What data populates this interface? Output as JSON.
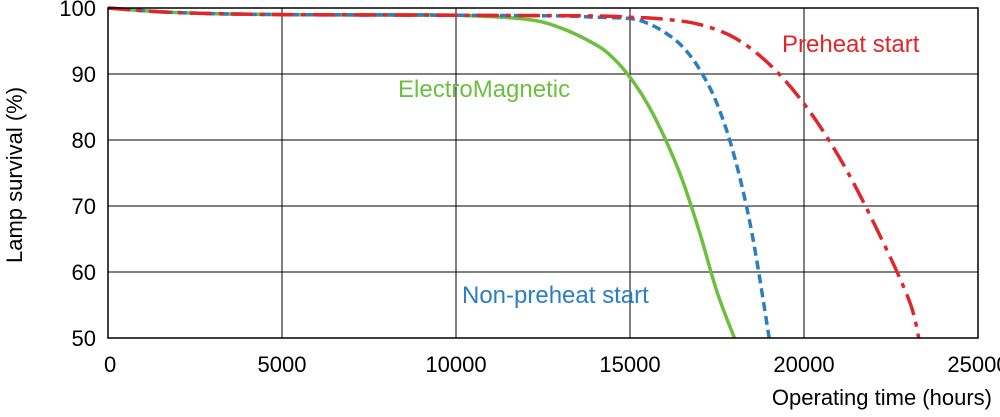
{
  "chart_data": {
    "type": "line",
    "title": "",
    "xlabel": "Operating time (hours)",
    "ylabel": "Lamp survival (%)",
    "xlim": [
      0,
      25000
    ],
    "ylim": [
      50,
      100
    ],
    "xticks": [
      "0",
      "5000",
      "10000",
      "15000",
      "20000",
      "25000"
    ],
    "yticks": [
      "50",
      "60",
      "70",
      "80",
      "90",
      "100"
    ],
    "grid": true,
    "series": [
      {
        "name": "ElectroMagnetic",
        "color": "#6cbf3f",
        "dash": "solid",
        "x": [
          0,
          2000,
          5000,
          8000,
          10000,
          12000,
          13000,
          14000,
          14500,
          15000,
          15500,
          16000,
          16500,
          17000,
          17500,
          18000
        ],
        "y": [
          100,
          99.3,
          99,
          99,
          98.9,
          98.3,
          97,
          94.5,
          92.5,
          89.5,
          85.5,
          80.3,
          74,
          66,
          57,
          50
        ]
      },
      {
        "name": "Non-preheat start",
        "color": "#2b7fc1",
        "dash": "short",
        "x": [
          0,
          2000,
          5000,
          10000,
          13000,
          14000,
          15000,
          15500,
          16000,
          16500,
          17000,
          17500,
          18000,
          18500,
          19000
        ],
        "y": [
          100,
          99.3,
          99,
          98.9,
          98.8,
          98.6,
          98.4,
          97.7,
          96.3,
          94.2,
          90.7,
          85.5,
          77.5,
          66,
          50
        ]
      },
      {
        "name": "Preheat start",
        "color": "#e0262a",
        "dash": "dashdot",
        "x": [
          0,
          2000,
          5000,
          10000,
          14000,
          15000,
          16000,
          17000,
          18000,
          19000,
          20000,
          21000,
          22000,
          23000,
          23300
        ],
        "y": [
          100,
          99.3,
          99,
          98.9,
          98.8,
          98.6,
          98.3,
          97.5,
          95.5,
          91.5,
          85.5,
          77.5,
          67.5,
          56,
          50
        ]
      }
    ],
    "annotations": [
      {
        "text": "Preheat start",
        "color": "#e0262a"
      },
      {
        "text": "ElectroMagnetic",
        "color": "#6cbf3f"
      },
      {
        "text": "Non-preheat start",
        "color": "#2b7fc1"
      }
    ]
  }
}
